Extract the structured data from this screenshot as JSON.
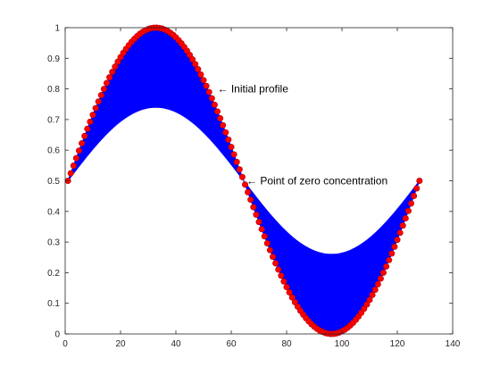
{
  "chart_data": {
    "type": "line",
    "title": "",
    "xlabel": "",
    "ylabel": "",
    "xlim": [
      0,
      140
    ],
    "ylim": [
      0,
      1
    ],
    "x_ticks": [
      0,
      20,
      40,
      60,
      80,
      100,
      120,
      140
    ],
    "y_ticks": [
      0,
      0.1,
      0.2,
      0.3,
      0.4,
      0.5,
      0.6,
      0.7,
      0.8,
      0.9,
      1
    ],
    "x_tick_labels": [
      "0",
      "20",
      "40",
      "60",
      "80",
      "100",
      "120",
      "140"
    ],
    "y_tick_labels": [
      "0",
      "0.1",
      "0.2",
      "0.3",
      "0.4",
      "0.5",
      "0.6",
      "0.7",
      "0.8",
      "0.9",
      "1"
    ],
    "grid": false,
    "series": [
      {
        "role": "initial-profile-markers",
        "color": "#ff0000",
        "x_start": 1,
        "x_end": 128,
        "x_step": 1,
        "formula": "0.5 + 0.5*sin(2*pi*(x-1)/127)"
      },
      {
        "role": "envelope-lower-bound",
        "color": "#0000ff",
        "formula": "0.5 + 0.24*sin(2*pi*(x-1)/127)"
      }
    ],
    "fill_color": "#0000ff",
    "annotations": [
      {
        "text": "← Initial profile",
        "x": 55,
        "y": 0.8
      },
      {
        "text": "← Point of zero concentration",
        "x": 65.5,
        "y": 0.5
      }
    ]
  }
}
